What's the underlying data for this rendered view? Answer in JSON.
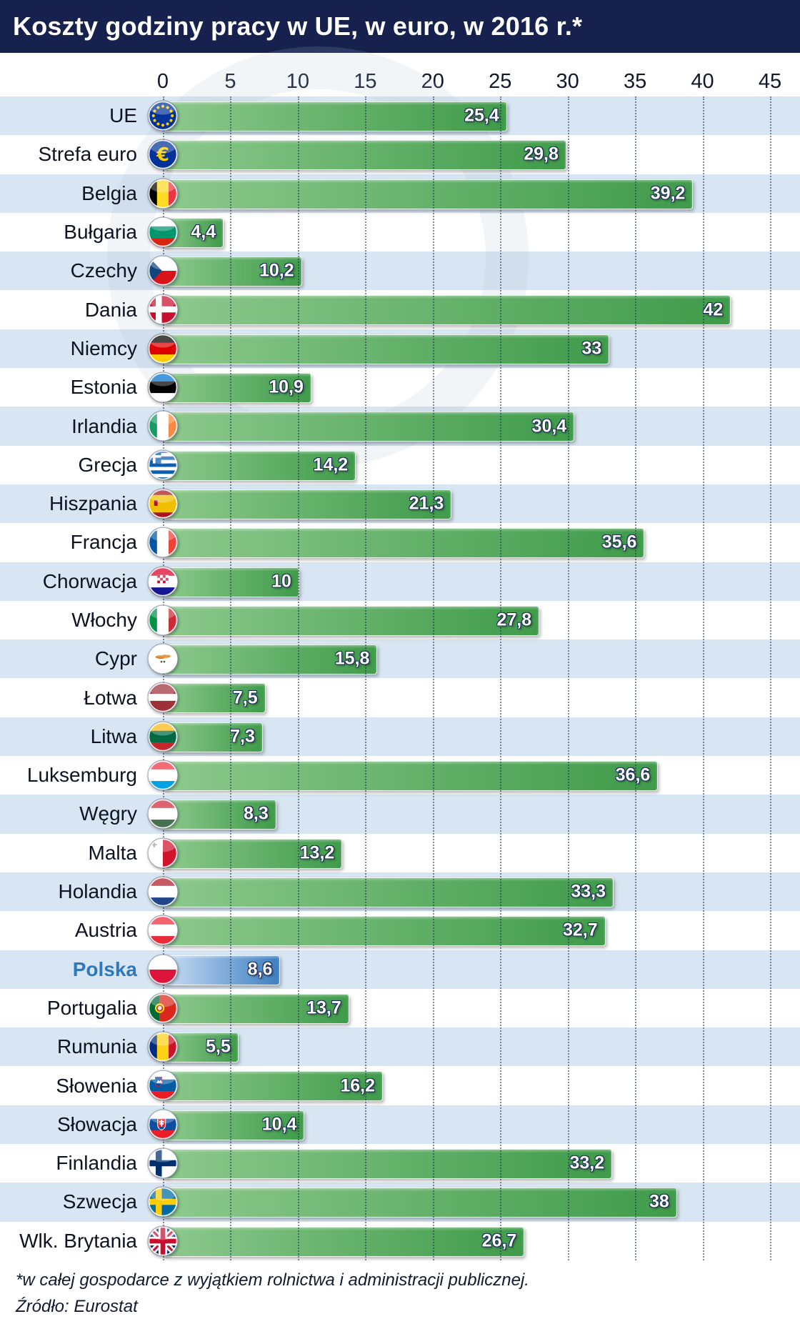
{
  "title": "Koszty godziny pracy w UE, w euro, w 2016 r.*",
  "footnote": "*w całej gospodarce z wyjątkiem rolnictwa i administracji publicznej.",
  "source": "Źródło: Eurostat",
  "axis": {
    "ticks": [
      "0",
      "5",
      "10",
      "15",
      "20",
      "25",
      "30",
      "35",
      "40",
      "45"
    ]
  },
  "colors": {
    "title_bg": "#16214e",
    "stripe": "#d8e5f2",
    "bar_from": "#8dc98d",
    "bar_to": "#3f9b4a",
    "highlight_from": "#cadef4",
    "highlight_to": "#3e7fc1",
    "highlight_label": "#2e79bd",
    "value_outline": "#1b2a57",
    "grid": "rgba(30,45,80,0.55)"
  },
  "chart_data": {
    "type": "bar",
    "orientation": "horizontal",
    "title": "Koszty godziny pracy w UE, w euro, w 2016 r.*",
    "xlabel": "",
    "ylabel": "",
    "xlim": [
      0,
      45
    ],
    "ticks": [
      0,
      5,
      10,
      15,
      20,
      25,
      30,
      35,
      40,
      45
    ],
    "grid": "dotted-vertical",
    "highlight_category": "Polska",
    "categories": [
      "UE",
      "Strefa euro",
      "Belgia",
      "Bułgaria",
      "Czechy",
      "Dania",
      "Niemcy",
      "Estonia",
      "Irlandia",
      "Grecja",
      "Hiszpania",
      "Francja",
      "Chorwacja",
      "Włochy",
      "Cypr",
      "Łotwa",
      "Litwa",
      "Luksemburg",
      "Węgry",
      "Malta",
      "Holandia",
      "Austria",
      "Polska",
      "Portugalia",
      "Rumunia",
      "Słowenia",
      "Słowacja",
      "Finlandia",
      "Szwecja",
      "Wlk. Brytania"
    ],
    "values": [
      25.4,
      29.8,
      39.2,
      4.4,
      10.2,
      42,
      33,
      10.9,
      30.4,
      14.2,
      21.3,
      35.6,
      10,
      27.8,
      15.8,
      7.5,
      7.3,
      36.6,
      8.3,
      13.2,
      33.3,
      32.7,
      8.6,
      13.7,
      5.5,
      16.2,
      10.4,
      33.2,
      38,
      26.7
    ],
    "rows": [
      {
        "label": "UE",
        "value": 25.4,
        "display": "25,4",
        "flag": {
          "type": "eu"
        }
      },
      {
        "label": "Strefa euro",
        "value": 29.8,
        "display": "29,8",
        "flag": {
          "type": "euro"
        }
      },
      {
        "label": "Belgia",
        "value": 39.2,
        "display": "39,2",
        "flag": {
          "type": "v",
          "colors": [
            "#000000",
            "#FDDA24",
            "#EF3340"
          ]
        }
      },
      {
        "label": "Bułgaria",
        "value": 4.4,
        "display": "4,4",
        "flag": {
          "type": "h",
          "colors": [
            "#FFFFFF",
            "#00966E",
            "#D62612"
          ]
        }
      },
      {
        "label": "Czechy",
        "value": 10.2,
        "display": "10,2",
        "flag": {
          "type": "czech",
          "colors": [
            "#FFFFFF",
            "#D7141A",
            "#11457E"
          ]
        }
      },
      {
        "label": "Dania",
        "value": 42,
        "display": "42",
        "flag": {
          "type": "nordic",
          "colors": [
            "#C8102E",
            "#FFFFFF"
          ]
        }
      },
      {
        "label": "Niemcy",
        "value": 33,
        "display": "33",
        "flag": {
          "type": "h",
          "colors": [
            "#000000",
            "#DD0000",
            "#FFCE00"
          ]
        }
      },
      {
        "label": "Estonia",
        "value": 10.9,
        "display": "10,9",
        "flag": {
          "type": "h",
          "colors": [
            "#0072CE",
            "#000000",
            "#FFFFFF"
          ]
        }
      },
      {
        "label": "Irlandia",
        "value": 30.4,
        "display": "30,4",
        "flag": {
          "type": "v",
          "colors": [
            "#169B62",
            "#FFFFFF",
            "#FF883E"
          ]
        }
      },
      {
        "label": "Grecja",
        "value": 14.2,
        "display": "14,2",
        "flag": {
          "type": "greece",
          "colors": [
            "#0D5EAF",
            "#FFFFFF"
          ]
        }
      },
      {
        "label": "Hiszpania",
        "value": 21.3,
        "display": "21,3",
        "flag": {
          "type": "h",
          "colors": [
            "#AA151B",
            "#F1BF00",
            "#AA151B"
          ],
          "ratios": [
            1,
            2,
            1
          ],
          "overlay": "spain"
        }
      },
      {
        "label": "Francja",
        "value": 35.6,
        "display": "35,6",
        "flag": {
          "type": "v",
          "colors": [
            "#0055A4",
            "#FFFFFF",
            "#EF4135"
          ]
        }
      },
      {
        "label": "Chorwacja",
        "value": 10,
        "display": "10",
        "flag": {
          "type": "h",
          "colors": [
            "#D80027",
            "#FFFFFF",
            "#171796"
          ],
          "overlay": "croatia"
        }
      },
      {
        "label": "Włochy",
        "value": 27.8,
        "display": "27,8",
        "flag": {
          "type": "v",
          "colors": [
            "#009246",
            "#FFFFFF",
            "#CE2B37"
          ]
        }
      },
      {
        "label": "Cypr",
        "value": 15.8,
        "display": "15,8",
        "flag": {
          "type": "solid",
          "colors": [
            "#FFFFFF"
          ],
          "overlay": "cyprus"
        }
      },
      {
        "label": "Łotwa",
        "value": 7.5,
        "display": "7,5",
        "flag": {
          "type": "h",
          "colors": [
            "#9E3039",
            "#FFFFFF",
            "#9E3039"
          ],
          "ratios": [
            2,
            1,
            2
          ]
        }
      },
      {
        "label": "Litwa",
        "value": 7.3,
        "display": "7,3",
        "flag": {
          "type": "h",
          "colors": [
            "#FDB913",
            "#006A44",
            "#C1272D"
          ]
        }
      },
      {
        "label": "Luksemburg",
        "value": 36.6,
        "display": "36,6",
        "flag": {
          "type": "h",
          "colors": [
            "#EF3340",
            "#FFFFFF",
            "#00A2E1"
          ]
        }
      },
      {
        "label": "Węgry",
        "value": 8.3,
        "display": "8,3",
        "flag": {
          "type": "h",
          "colors": [
            "#CE2939",
            "#FFFFFF",
            "#477050"
          ]
        }
      },
      {
        "label": "Malta",
        "value": 13.2,
        "display": "13,2",
        "flag": {
          "type": "v",
          "colors": [
            "#FFFFFF",
            "#CF142B"
          ],
          "overlay": "malta"
        }
      },
      {
        "label": "Holandia",
        "value": 33.3,
        "display": "33,3",
        "flag": {
          "type": "h",
          "colors": [
            "#AE1C28",
            "#FFFFFF",
            "#21468B"
          ]
        }
      },
      {
        "label": "Austria",
        "value": 32.7,
        "display": "32,7",
        "flag": {
          "type": "h",
          "colors": [
            "#ED2939",
            "#FFFFFF",
            "#ED2939"
          ]
        }
      },
      {
        "label": "Polska",
        "value": 8.6,
        "display": "8,6",
        "flag": {
          "type": "h",
          "colors": [
            "#FFFFFF",
            "#DC143C"
          ]
        }
      },
      {
        "label": "Portugalia",
        "value": 13.7,
        "display": "13,7",
        "flag": {
          "type": "v",
          "colors": [
            "#046A38",
            "#DA291C"
          ],
          "ratios": [
            2,
            3
          ],
          "overlay": "portugal"
        }
      },
      {
        "label": "Rumunia",
        "value": 5.5,
        "display": "5,5",
        "flag": {
          "type": "v",
          "colors": [
            "#002B7F",
            "#FCD116",
            "#CE1126"
          ]
        }
      },
      {
        "label": "Słowenia",
        "value": 16.2,
        "display": "16,2",
        "flag": {
          "type": "h",
          "colors": [
            "#FFFFFF",
            "#005DA4",
            "#ED1C24"
          ],
          "overlay": "slovenia"
        }
      },
      {
        "label": "Słowacja",
        "value": 10.4,
        "display": "10,4",
        "flag": {
          "type": "h",
          "colors": [
            "#FFFFFF",
            "#0B4EA2",
            "#EE1C25"
          ],
          "overlay": "slovakia"
        }
      },
      {
        "label": "Finlandia",
        "value": 33.2,
        "display": "33,2",
        "flag": {
          "type": "nordic",
          "colors": [
            "#FFFFFF",
            "#002F6C"
          ]
        }
      },
      {
        "label": "Szwecja",
        "value": 38,
        "display": "38",
        "flag": {
          "type": "nordic",
          "colors": [
            "#006AA7",
            "#FECC02"
          ]
        }
      },
      {
        "label": "Wlk. Brytania",
        "value": 26.7,
        "display": "26,7",
        "flag": {
          "type": "uj"
        }
      }
    ]
  }
}
